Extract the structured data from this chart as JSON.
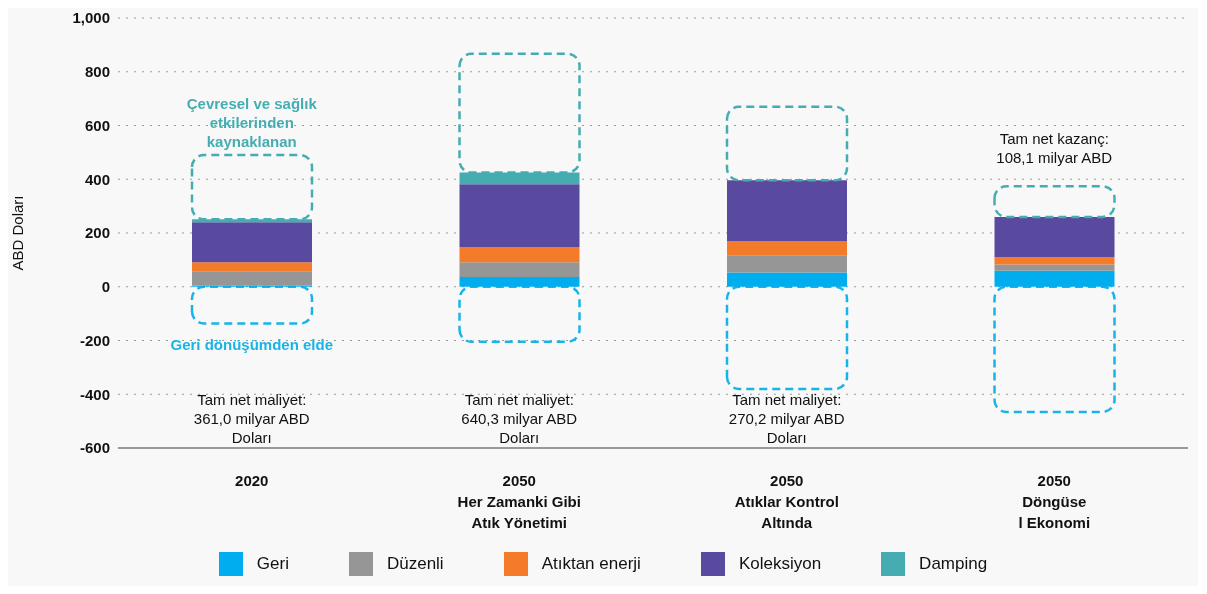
{
  "chart_data": {
    "type": "bar",
    "stacked": true,
    "ylabel": "ABD Doları",
    "categories": [
      "2020",
      "2050\nHer Zamanki Gibi\nAtık Yönetimi",
      "2050\nAtıklar Kontrol\nAltında",
      "2050\nDöngüse\nl Ekonomi"
    ],
    "series": [
      {
        "color": "#18b4e8",
        "line_style": "dashed",
        "values": [
          -137,
          -205,
          -380,
          -466
        ]
      },
      {
        "name": "Geri",
        "color": "#00aeef",
        "values": [
          5,
          36,
          53,
          60
        ]
      },
      {
        "name": "Düzenli",
        "color": "#969696",
        "values": [
          51,
          55,
          64,
          23
        ]
      },
      {
        "name": "Atıktan enerji",
        "color": "#f47b2a",
        "values": [
          35,
          57,
          53,
          27
        ]
      },
      {
        "name": "Koleksiyon",
        "color": "#5a4a9f",
        "values": [
          149,
          233,
          226,
          150
        ]
      },
      {
        "name": "Damping",
        "color": "#45adb1",
        "values": [
          11,
          44,
          null,
          null
        ]
      },
      {
        "color": "#45adb1",
        "line_style": "dashed",
        "values": [
          239,
          442,
          274,
          114
        ]
      }
    ],
    "ylim": [
      -600,
      1000
    ],
    "yticks": [
      -600,
      -400,
      -200,
      0,
      200,
      400,
      600,
      800,
      {
        "value": 1000,
        "label": "1,000"
      }
    ],
    "grid": "y",
    "legend": "bottom",
    "annotations": [
      "Çevresel ve sağlık\netkilerinden\nkaynaklanan",
      "Geri dönüşümden elde",
      "Tam net maliyet:\n361,0 milyar ABD\nDoları",
      "Tam net maliyet:\n640,3 milyar ABD\nDoları",
      "Tam net maliyet:\n270,2 milyar ABD\nDoları",
      "Tam net kazanç:\n108,1 milyar ABD"
    ]
  }
}
